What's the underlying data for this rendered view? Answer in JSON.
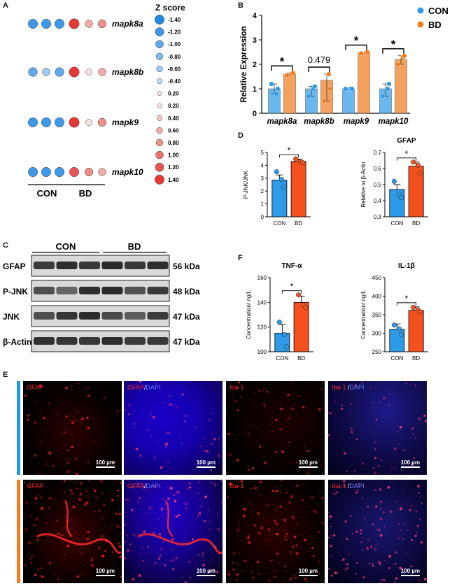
{
  "panels": {
    "a": "A",
    "b": "B",
    "c": "C",
    "d": "D",
    "e": "E",
    "f": "F"
  },
  "colors": {
    "con": "#2E9BE8",
    "bd": "#F07D1F",
    "bd_strong": "#F4511E",
    "z_high": "#E53935",
    "z_low": "#1E88E5"
  },
  "panel_a": {
    "legend_title": "Z score",
    "legend_values": [
      "-1.40",
      "-1.20",
      "-1.00",
      "-0.80",
      "-0.60",
      "-0.40",
      "0.20",
      "0.20",
      "0.40",
      "0.60",
      "0.80",
      "1.00",
      "1.20",
      "1.40"
    ],
    "genes": [
      {
        "name": "mapk8a",
        "values": [
          -1.2,
          -1.2,
          -1.2,
          1.4,
          0.6,
          0.8
        ]
      },
      {
        "name": "mapk8b",
        "values": [
          -1.0,
          -0.6,
          -1.0,
          1.4,
          0.2,
          0.6
        ]
      },
      {
        "name": "mapk9",
        "values": [
          -1.2,
          -1.2,
          -1.2,
          1.4,
          0.2,
          0.8
        ]
      },
      {
        "name": "mapk10",
        "values": [
          -1.2,
          -1.2,
          -1.2,
          1.2,
          0.8,
          0.6
        ]
      }
    ],
    "group_con": "CON",
    "group_bd": "BD"
  },
  "chart_data": [
    {
      "type": "bar",
      "panel": "B",
      "categories": [
        "mapk8a",
        "mapk8b",
        "mapk9",
        "mapk10"
      ],
      "series": [
        {
          "name": "CON",
          "values": [
            1.0,
            1.0,
            1.0,
            1.0
          ],
          "points": [
            [
              1.2,
              0.8,
              1.0
            ],
            [
              0.7,
              1.0,
              1.1
            ],
            [
              1.0,
              1.0,
              1.0
            ],
            [
              0.7,
              1.0,
              1.2
            ]
          ]
        },
        {
          "name": "BD",
          "values": [
            1.6,
            1.35,
            2.48,
            2.2
          ],
          "points": [
            [
              1.55,
              1.62,
              1.65
            ],
            [
              0.5,
              1.6,
              1.0
            ],
            [
              2.45,
              2.47,
              2.5
            ],
            [
              2.0,
              2.3,
              2.35
            ]
          ]
        }
      ],
      "ylabel": "Relative Expression",
      "ylim": [
        0,
        4
      ],
      "yticks": [
        "0",
        "1",
        "2",
        "3",
        "4"
      ],
      "annotations": [
        "*",
        "0.479",
        "*",
        "*"
      ]
    },
    {
      "type": "bar",
      "panel": "D",
      "title": "",
      "ylabel": "P-JNK/JNK",
      "categories": [
        "CON",
        "BD"
      ],
      "values": [
        2.85,
        4.3
      ],
      "errors": [
        0.4,
        0.18
      ],
      "points": [
        [
          3.5,
          2.9,
          2.3
        ],
        [
          4.5,
          4.3,
          4.2
        ]
      ],
      "ylim": [
        0,
        5
      ],
      "yticks": [
        "0",
        "1",
        "2",
        "3",
        "4",
        "5"
      ],
      "annotation": "*"
    },
    {
      "type": "bar",
      "panel": "D",
      "title": "GFAP",
      "ylabel": "Relative to β-Actin",
      "categories": [
        "CON",
        "BD"
      ],
      "values": [
        0.47,
        0.615
      ],
      "errors": [
        0.03,
        0.025
      ],
      "points": [
        [
          0.52,
          0.44,
          0.42
        ],
        [
          0.64,
          0.62,
          0.57
        ]
      ],
      "ylim": [
        0.3,
        0.7
      ],
      "yticks": [
        "0.3",
        "0.4",
        "0.5",
        "0.6",
        "0.7"
      ],
      "annotation": "*"
    },
    {
      "type": "bar",
      "panel": "F",
      "title": "TNF-α",
      "ylabel": "Concentration/ ng/L",
      "categories": [
        "CON",
        "BD"
      ],
      "values": [
        115,
        140
      ],
      "errors": [
        7,
        5
      ],
      "points": [
        [
          124,
          114,
          104
        ],
        [
          146,
          138,
          136
        ]
      ],
      "ylim": [
        100,
        160
      ],
      "yticks": [
        "100",
        "120",
        "140",
        "160"
      ],
      "annotation": "*"
    },
    {
      "type": "bar",
      "panel": "F",
      "title": "IL-1β",
      "ylabel": "Concentration/ ng/L",
      "categories": [
        "CON",
        "BD"
      ],
      "values": [
        310,
        362
      ],
      "errors": [
        15,
        9
      ],
      "points": [
        [
          322,
          312,
          296
        ],
        [
          370,
          362,
          358
        ]
      ],
      "ylim": [
        250,
        450
      ],
      "yticks": [
        "250",
        "300",
        "350",
        "400",
        "450"
      ],
      "annotation": "*"
    }
  ],
  "panel_c": {
    "group_con": "CON",
    "group_bd": "BD",
    "rows": [
      {
        "label": "GFAP",
        "kda": "56 kDa"
      },
      {
        "label": "P-JNK",
        "kda": "48 kDa"
      },
      {
        "label": "JNK",
        "kda": "47 kDa"
      },
      {
        "label": "β-Actin",
        "kda": "47 kDa"
      }
    ]
  },
  "panel_e": {
    "labels": [
      {
        "main": "GFAP"
      },
      {
        "main": "GFAP",
        "sep": "/",
        "dapi": "DAPI"
      },
      {
        "main": "Iba-1"
      },
      {
        "main": "Iba-1",
        "sep": " /",
        "dapi": "DAPI"
      }
    ],
    "scale": "100 µm"
  }
}
